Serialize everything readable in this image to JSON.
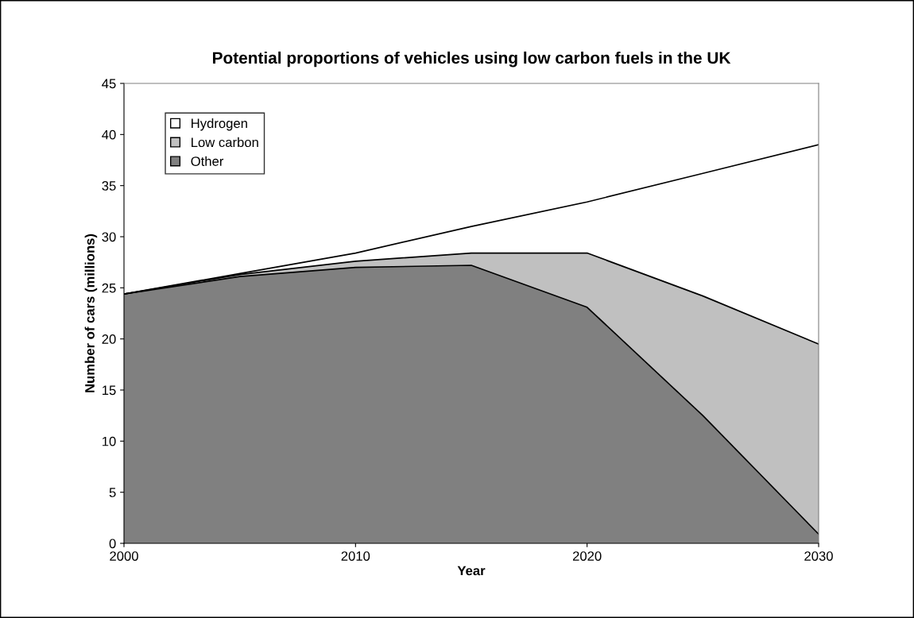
{
  "chart_data": {
    "type": "area",
    "title": "Potential proportions of vehicles using low carbon fuels in the UK",
    "xlabel": "Year",
    "ylabel": "Number of cars (millions)",
    "x": [
      2000,
      2005,
      2010,
      2015,
      2020,
      2025,
      2030
    ],
    "stacked": true,
    "series": [
      {
        "name": "Other",
        "color": "#808080",
        "values": [
          24.4,
          26.1,
          27.0,
          27.2,
          23.1,
          12.5,
          0.9
        ]
      },
      {
        "name": "Low carbon",
        "color": "#c0c0c0",
        "values": [
          0,
          0.2,
          0.6,
          1.2,
          5.3,
          11.7,
          18.6
        ]
      },
      {
        "name": "Hydrogen",
        "color": "#ffffff",
        "values": [
          0,
          0.1,
          0.8,
          2.6,
          5.0,
          12.0,
          19.5
        ]
      }
    ],
    "xlim": [
      2000,
      2030
    ],
    "xticks": [
      2000,
      2010,
      2020,
      2030
    ],
    "ylim": [
      0,
      45
    ],
    "yticks": [
      0,
      5,
      10,
      15,
      20,
      25,
      30,
      35,
      40,
      45
    ],
    "grid": false,
    "legend": "top left"
  }
}
